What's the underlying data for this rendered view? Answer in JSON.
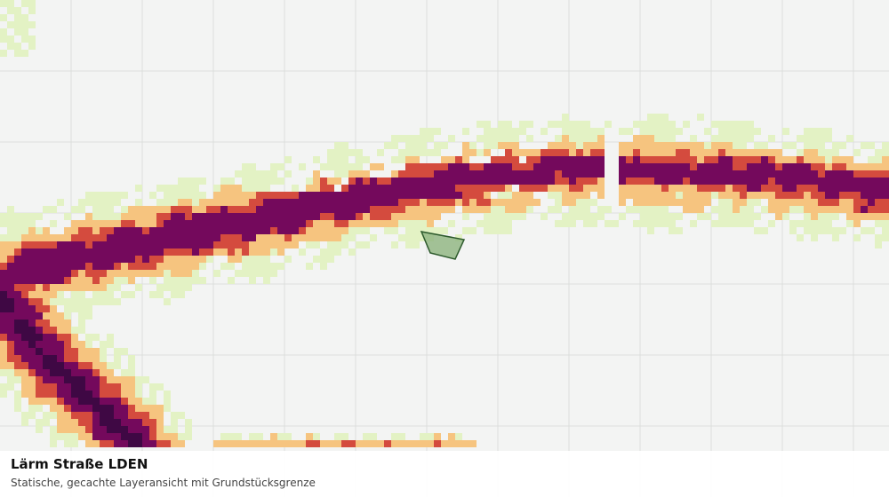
{
  "caption": {
    "title": "Lärm Straße LDEN",
    "subtitle": "Statische, gecachte Layeransicht mit Grundstücksgrenze"
  },
  "colors": {
    "background": "#f3f4f3",
    "grid": "#dcdedc",
    "noise_class_1": "#e3f2c4",
    "noise_class_2": "#f6c47f",
    "noise_class_3": "#d44b3e",
    "noise_class_4": "#74095c",
    "noise_class_5": "#3f0844",
    "parcel_fill": "#93b785",
    "parcel_stroke": "#2d5a2c"
  }
}
